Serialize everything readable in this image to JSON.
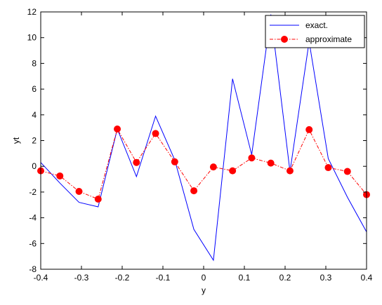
{
  "chart_data": {
    "type": "line",
    "title": "",
    "xlabel": "y",
    "ylabel": "yt",
    "xlim": [
      -0.4,
      0.4
    ],
    "ylim": [
      -8,
      12
    ],
    "xticks": [
      -0.4,
      -0.3,
      -0.2,
      -0.1,
      0,
      0.1,
      0.2,
      0.3,
      0.4
    ],
    "xtick_labels": [
      "-0.4",
      "-0.3",
      "-0.2",
      "-0.1",
      "0",
      "0.1",
      "0.2",
      "0.3",
      "0.4"
    ],
    "yticks": [
      -8,
      -6,
      -4,
      -2,
      0,
      2,
      4,
      6,
      8,
      10,
      12
    ],
    "ytick_labels": [
      "-8",
      "-6",
      "-4",
      "-2",
      "0",
      "2",
      "4",
      "6",
      "8",
      "10",
      "12"
    ],
    "grid": false,
    "legend_position": "top-right",
    "series": [
      {
        "name": "exact.",
        "color": "#0000ff",
        "style": "solid",
        "marker": "none",
        "x": [
          -0.4,
          -0.353,
          -0.306,
          -0.259,
          -0.212,
          -0.165,
          -0.118,
          -0.071,
          -0.024,
          0.024,
          0.071,
          0.118,
          0.165,
          0.212,
          0.259,
          0.306,
          0.353,
          0.4
        ],
        "y": [
          0.3,
          -1.3,
          -2.8,
          -3.15,
          2.9,
          -0.8,
          3.9,
          0.5,
          -4.9,
          -7.3,
          6.8,
          0.9,
          11.8,
          -0.4,
          9.7,
          0.6,
          -2.4,
          -5.1
        ]
      },
      {
        "name": "approximate",
        "color": "#ff0000",
        "style": "dashdot",
        "marker": "circle",
        "x": [
          -0.4,
          -0.353,
          -0.306,
          -0.259,
          -0.212,
          -0.165,
          -0.118,
          -0.071,
          -0.024,
          0.024,
          0.071,
          0.118,
          0.165,
          0.212,
          0.259,
          0.306,
          0.353,
          0.4
        ],
        "y": [
          -0.35,
          -0.75,
          -1.95,
          -2.55,
          2.9,
          0.3,
          2.55,
          0.35,
          -1.9,
          -0.05,
          -0.35,
          0.65,
          0.25,
          -0.35,
          2.85,
          -0.1,
          -0.4,
          -2.2
        ]
      }
    ]
  }
}
